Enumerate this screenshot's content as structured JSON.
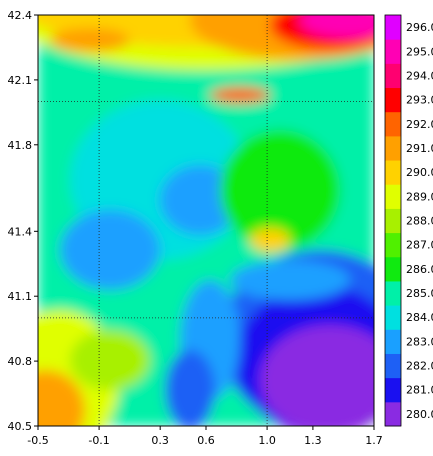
{
  "chart_data": {
    "type": "heatmap",
    "title": "",
    "xlabel": "",
    "ylabel": "",
    "xlim": [
      -0.5,
      1.7
    ],
    "ylim": [
      40.5,
      42.4
    ],
    "x_ticks": [
      "-0.5",
      "-0.1",
      "0.3",
      "0.6",
      "1.0",
      "1.3",
      "1.7"
    ],
    "y_ticks": [
      "40.5",
      "40.8",
      "41.1",
      "41.4",
      "41.8",
      "42.1",
      "42.4"
    ],
    "x_tick_values": [
      -0.5,
      -0.1,
      0.3,
      0.6,
      1.0,
      1.3,
      1.7
    ],
    "y_tick_values": [
      40.5,
      40.8,
      41.1,
      41.4,
      41.8,
      42.1,
      42.4
    ],
    "grid_lon": [
      -0.1,
      1.0
    ],
    "grid_lat": [
      41.0,
      42.0
    ],
    "grid": true,
    "colorbar": {
      "placement": "right",
      "levels": [
        "280.0",
        "281.0",
        "282.0",
        "283.0",
        "284.0",
        "285.0",
        "286.0",
        "287.0",
        "288.0",
        "289.0",
        "290.0",
        "291.0",
        "292.0",
        "293.0",
        "294.0",
        "295.0",
        "296.0"
      ],
      "level_values": [
        280,
        281,
        282,
        283,
        284,
        285,
        286,
        287,
        288,
        289,
        290,
        291,
        292,
        293,
        294,
        295,
        296
      ],
      "colors": [
        "#8a2be2",
        "#1a10f0",
        "#1e60f5",
        "#1aa0ff",
        "#00e0e0",
        "#00f0a8",
        "#10ea10",
        "#50f000",
        "#a8f000",
        "#e0ff00",
        "#ffd200",
        "#ffa000",
        "#ff6400",
        "#ff0000",
        "#ff0070",
        "#ff00b4",
        "#e000ff"
      ],
      "min_value": 279.5,
      "max_value": 296.5
    }
  }
}
